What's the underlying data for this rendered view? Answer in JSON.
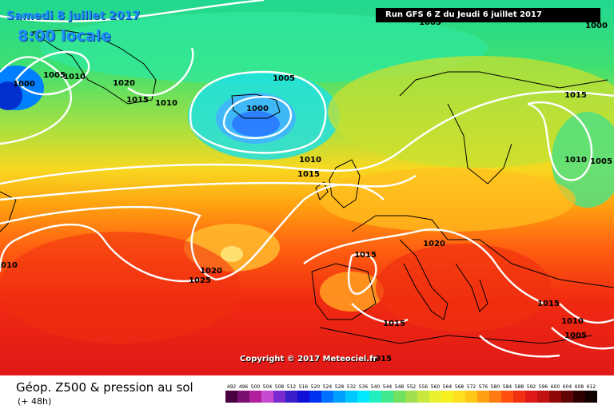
{
  "header": {
    "date": "Samedi 8 juillet 2017",
    "time": "8:00 locale",
    "run": "Run GFS 6 Z du Jeudi 6 juillet 2017"
  },
  "copyright": "Copyright © 2017 Meteociel.fr",
  "footer": {
    "title": "Géop. Z500 & pression au sol",
    "subtitle": "(+ 48h)"
  },
  "scale": {
    "values": [
      "492",
      "496",
      "500",
      "504",
      "508",
      "512",
      "516",
      "520",
      "524",
      "528",
      "532",
      "536",
      "540",
      "544",
      "548",
      "552",
      "556",
      "560",
      "564",
      "568",
      "572",
      "576",
      "580",
      "584",
      "588",
      "592",
      "596",
      "600",
      "604",
      "608",
      "612"
    ],
    "colors": [
      "#4a0040",
      "#7a1070",
      "#b0209c",
      "#c84ad0",
      "#7a2ad0",
      "#3a20c8",
      "#1010d8",
      "#0030f0",
      "#0070ff",
      "#00a0ff",
      "#00c8ff",
      "#00e8ff",
      "#20f0c0",
      "#40e890",
      "#70e060",
      "#a0e050",
      "#c8e840",
      "#e8f030",
      "#f8f020",
      "#ffe020",
      "#ffc818",
      "#ffa010",
      "#ff7a10",
      "#ff5010",
      "#f03010",
      "#e01818",
      "#c01010",
      "#900808",
      "#600404",
      "#300000",
      "#100000"
    ]
  },
  "isobars": [
    {
      "value": "1005"
    },
    {
      "value": "1000"
    },
    {
      "value": "1010"
    },
    {
      "value": "1020"
    },
    {
      "value": "1015"
    },
    {
      "value": "1005"
    },
    {
      "value": "1000"
    },
    {
      "value": "1010"
    },
    {
      "value": "1015"
    },
    {
      "value": "1015"
    },
    {
      "value": "1010"
    },
    {
      "value": "1005"
    },
    {
      "value": "1020"
    },
    {
      "value": "1025"
    },
    {
      "value": "1010"
    },
    {
      "value": "1020"
    },
    {
      "value": "1015"
    },
    {
      "value": "1015"
    },
    {
      "value": "1015"
    },
    {
      "value": "1010"
    },
    {
      "value": "1005"
    },
    {
      "value": "1015"
    },
    {
      "value": "1005"
    },
    {
      "value": "1000"
    },
    {
      "value": "1010"
    }
  ]
}
